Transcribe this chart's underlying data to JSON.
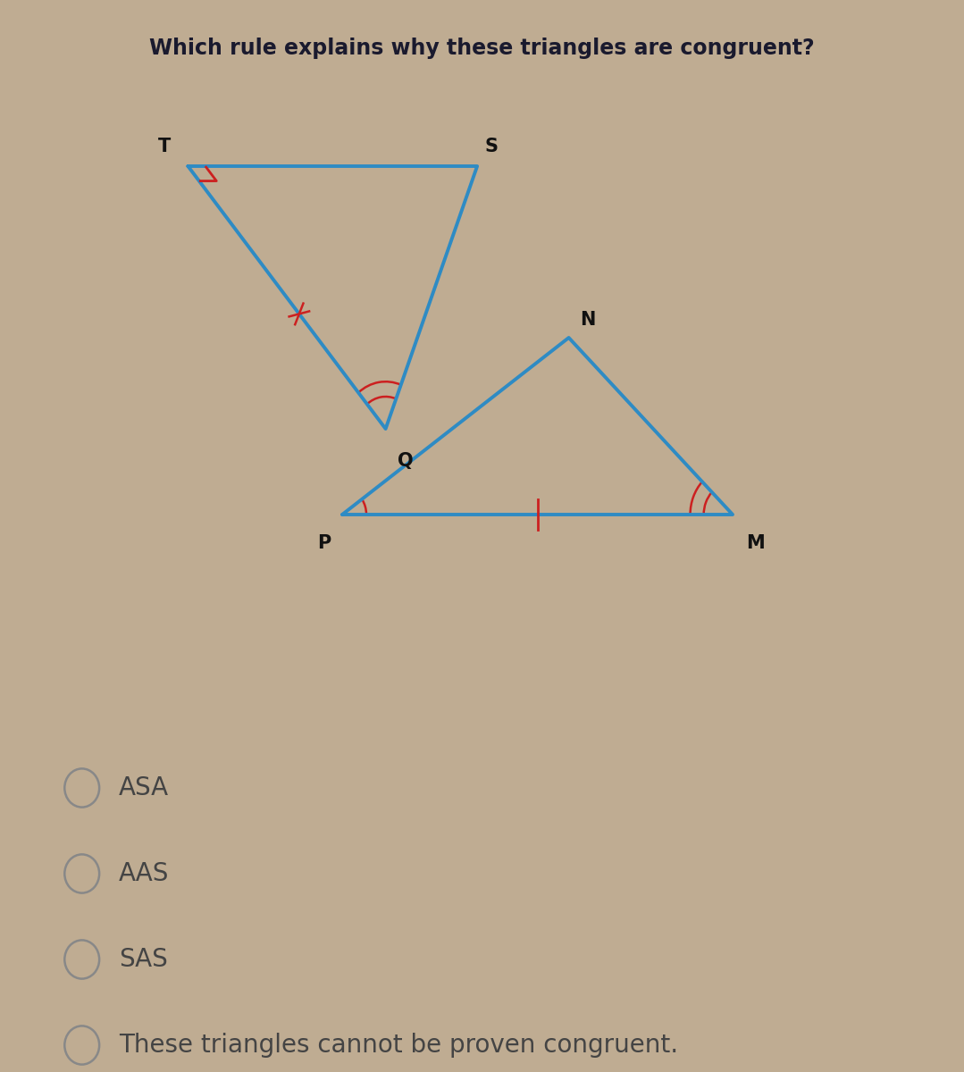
{
  "title": "Which rule explains why these triangles are congruent?",
  "title_fontsize": 17,
  "title_color": "#1a1a2e",
  "background_color": "#bfac92",
  "tri1": {
    "T": [
      0.195,
      0.845
    ],
    "S": [
      0.495,
      0.845
    ],
    "Q": [
      0.4,
      0.6
    ],
    "color": "#2e8bc4",
    "linewidth": 2.8
  },
  "tri2": {
    "P": [
      0.355,
      0.52
    ],
    "M": [
      0.76,
      0.52
    ],
    "N": [
      0.59,
      0.685
    ],
    "color": "#2e8bc4",
    "linewidth": 2.8
  },
  "marker_color": "#cc2020",
  "vertex_fontsize": 15,
  "vertex_color": "#111111",
  "options": [
    {
      "text": "ASA"
    },
    {
      "text": "AAS"
    },
    {
      "text": "SAS"
    },
    {
      "text": "These triangles cannot be proven congruent."
    }
  ],
  "option_fontsize": 20,
  "option_color": "#444444",
  "circle_color": "#888888"
}
